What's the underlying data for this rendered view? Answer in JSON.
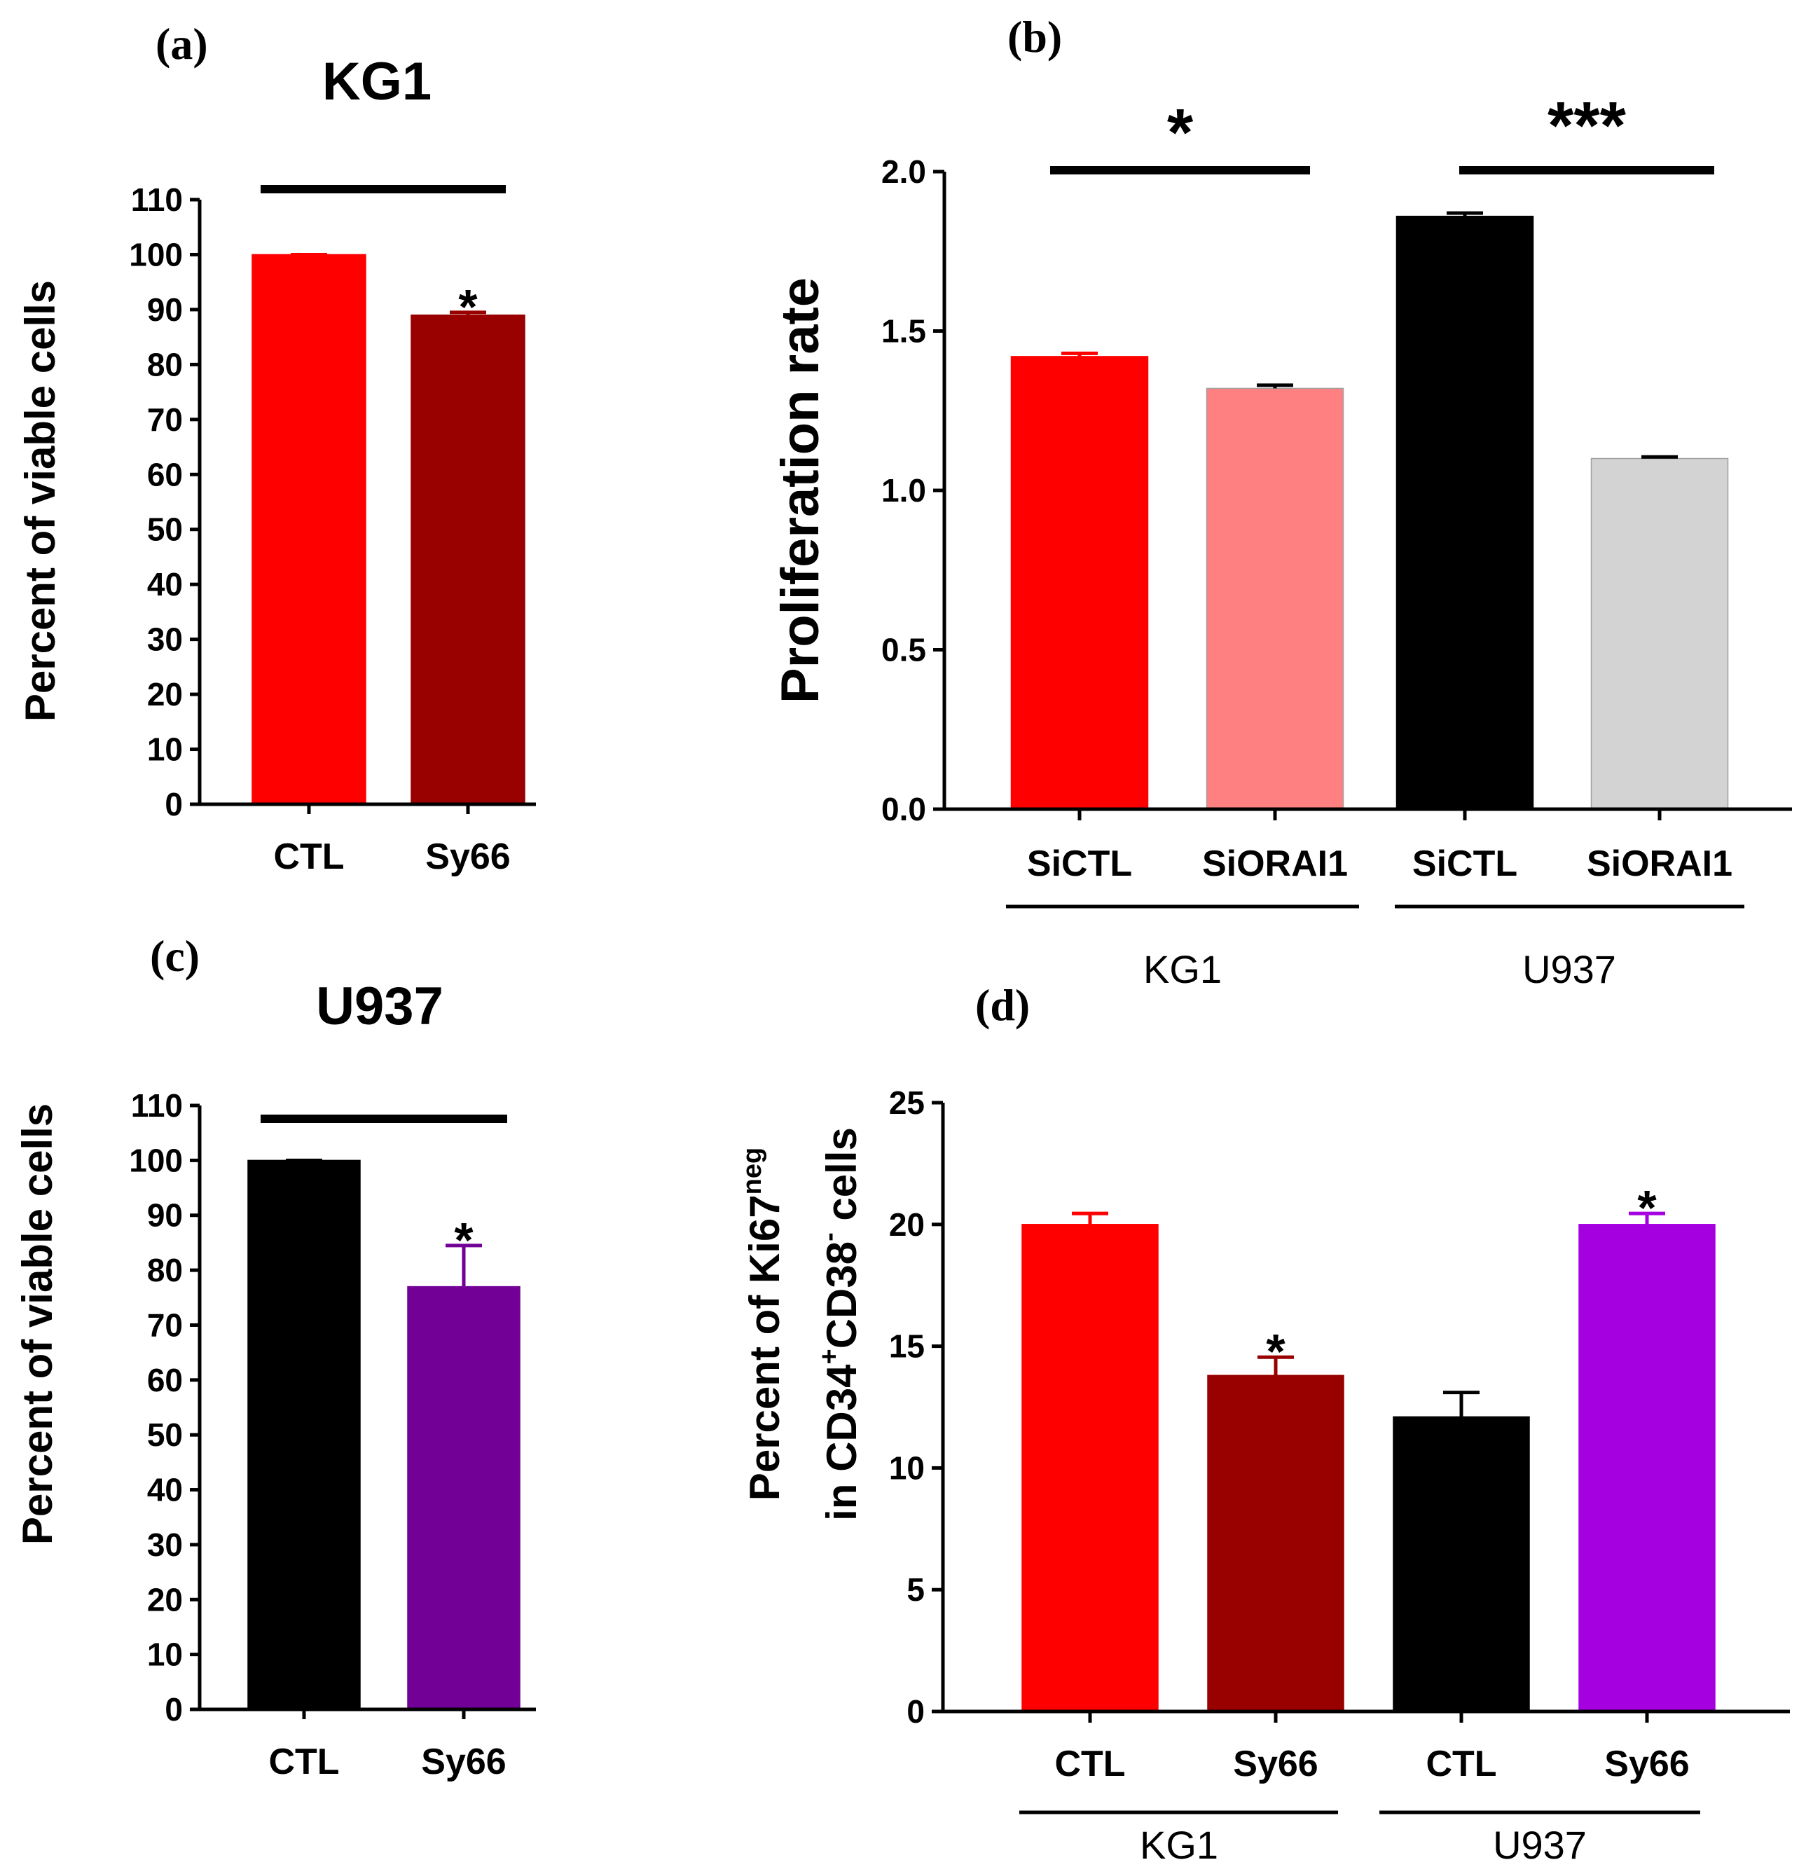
{
  "chart_data": [
    {
      "id": "a",
      "panel_label": "(a)",
      "type": "bar",
      "title": "KG1",
      "ylabel": "Percent of viable cells",
      "ylim": [
        0,
        110
      ],
      "yticks": [
        0,
        10,
        20,
        30,
        40,
        50,
        60,
        70,
        80,
        90,
        100,
        110
      ],
      "categories": [
        "CTL",
        "Sy66"
      ],
      "values": [
        100,
        89
      ],
      "errors": [
        0,
        0.5
      ],
      "colors": [
        "#ff0000",
        "#990000"
      ],
      "annotations": [
        "",
        "*"
      ],
      "bracket": true
    },
    {
      "id": "b",
      "panel_label": "(b)",
      "type": "bar",
      "title": "",
      "ylabel": "Proliferation rate",
      "ylim": [
        0,
        2.0
      ],
      "yticks": [
        "0.0",
        "0.5",
        "1.0",
        "1.5",
        "2.0"
      ],
      "categories": [
        "SiCTL",
        "SiORAI1",
        "SiCTL",
        "SiORAI1"
      ],
      "values": [
        1.42,
        1.32,
        1.86,
        1.1
      ],
      "errors": [
        0.01,
        0.01,
        0.01,
        0.005
      ],
      "colors": [
        "#ff0000",
        "#ff8080",
        "#000000",
        "#d3d3d3"
      ],
      "groups": [
        {
          "label": "KG1",
          "sig": "*"
        },
        {
          "label": "U937",
          "sig": "***"
        }
      ]
    },
    {
      "id": "c",
      "panel_label": "(c)",
      "type": "bar",
      "title": "U937",
      "ylabel": "Percent of viable cells",
      "ylim": [
        0,
        110
      ],
      "yticks": [
        0,
        10,
        20,
        30,
        40,
        50,
        60,
        70,
        80,
        90,
        100,
        110
      ],
      "categories": [
        "CTL",
        "Sy66"
      ],
      "values": [
        100,
        77
      ],
      "errors": [
        0,
        7.5
      ],
      "colors": [
        "#000000",
        "#720096"
      ],
      "annotations": [
        "",
        "*"
      ],
      "bracket": true
    },
    {
      "id": "d",
      "panel_label": "(d)",
      "type": "bar",
      "title": "",
      "ylabel_line1": {
        "pre": "Percent of Ki67",
        "sup": "neg"
      },
      "ylabel_line2": {
        "pre": "in CD34",
        "sup1": "+",
        "mid": "CD38",
        "sup2": "-",
        "post": " cells"
      },
      "ylim": [
        0,
        25
      ],
      "yticks": [
        0,
        5,
        10,
        15,
        20,
        25
      ],
      "categories": [
        "CTL",
        "Sy66",
        "CTL",
        "Sy66"
      ],
      "values": [
        20,
        13.8,
        12.1,
        20
      ],
      "errors": [
        0.45,
        0.75,
        1.0,
        0.45
      ],
      "colors": [
        "#ff0000",
        "#990000",
        "#000000",
        "#a500e0"
      ],
      "annotations": [
        "",
        "*",
        "",
        "*"
      ],
      "groups": [
        {
          "label": "KG1"
        },
        {
          "label": "U937"
        }
      ]
    }
  ]
}
